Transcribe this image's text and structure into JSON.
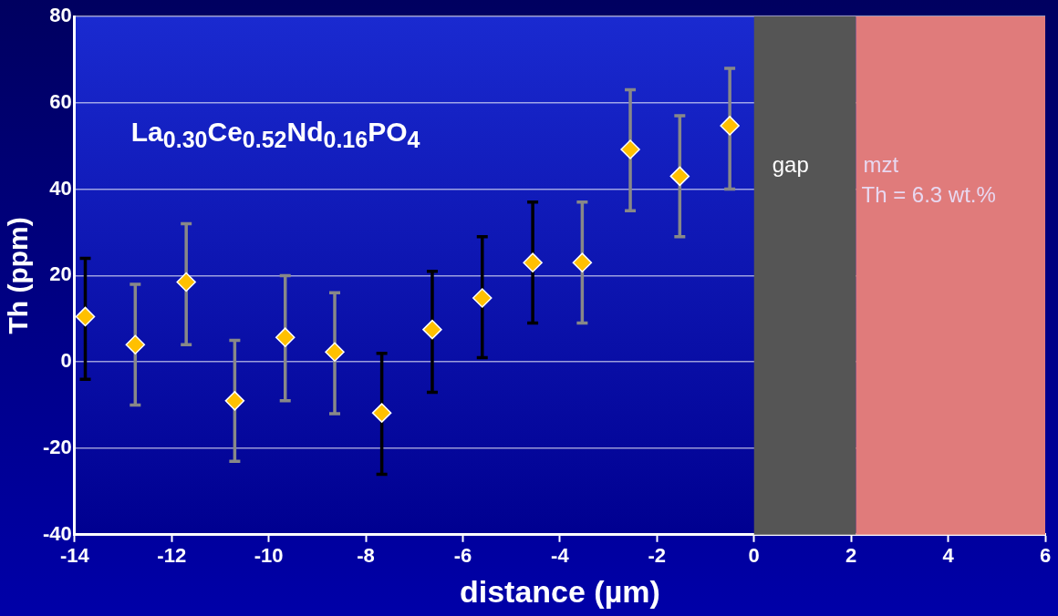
{
  "chart_data": {
    "type": "scatter",
    "xlabel": "distance (µm)",
    "ylabel": "Th (ppm)",
    "xlim": [
      -14,
      6
    ],
    "xticks": [
      -14,
      -12,
      -10,
      -8,
      -6,
      -4,
      -2,
      0,
      2,
      4,
      6
    ],
    "ylim": [
      -40,
      80
    ],
    "yticks": [
      -40,
      -20,
      0,
      20,
      40,
      60,
      80
    ],
    "grid": "y",
    "legend": false,
    "marker": "diamond",
    "annotations": [
      "La$_{0.30}$Ce$_{0.52}$Nd$_{0.16}$PO$_{4}$"
    ],
    "bands": [
      {
        "axis": "x",
        "from": 0,
        "to": 2.1,
        "label": "gap",
        "color": "#555555"
      },
      {
        "axis": "x",
        "from": 2.1,
        "to": 6,
        "label": "mzt\nTh = 6.3 wt.%",
        "color": "#e07b7b"
      }
    ],
    "series": [
      {
        "color": "#ffc000",
        "x": [
          -13.78,
          -7.67,
          -6.63,
          -5.6,
          -4.56
        ],
        "values": [
          10.5,
          -11.8,
          7.5,
          14.8,
          23
        ],
        "errors": [
          [
            -4,
            24
          ],
          [
            -26,
            2
          ],
          [
            -7,
            21
          ],
          [
            1,
            29
          ],
          [
            9,
            37
          ]
        ]
      },
      {
        "color": "#ffc000",
        "x": [
          -12.75,
          -11.7,
          -10.7,
          -9.66,
          -8.64,
          -3.54,
          -2.55,
          -1.53,
          -0.5
        ],
        "values": [
          4,
          18.5,
          -9,
          5.7,
          2.3,
          23,
          49.2,
          43,
          54.7
        ],
        "errors": [
          [
            -10,
            18
          ],
          [
            4,
            32
          ],
          [
            -23,
            5
          ],
          [
            -9,
            20
          ],
          [
            -12,
            16
          ],
          [
            9,
            37
          ],
          [
            35,
            63
          ],
          [
            29,
            57
          ],
          [
            40,
            68
          ]
        ]
      }
    ]
  }
}
